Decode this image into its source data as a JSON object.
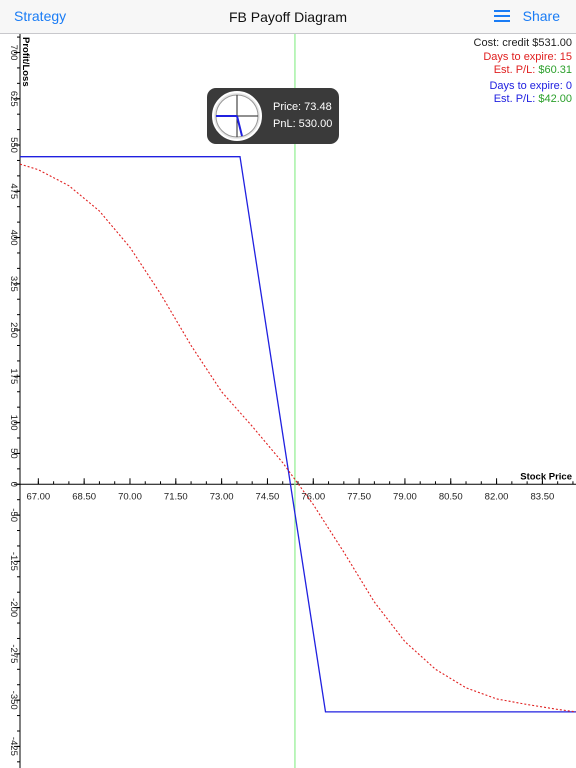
{
  "nav": {
    "left_label": "Strategy",
    "title": "FB Payoff Diagram",
    "list_icon": "list-icon",
    "share_label": "Share"
  },
  "info": {
    "cost": "Cost: credit $531.00",
    "expire15_label": "Days to expire: 15",
    "est15_label": "Est. P/L: ",
    "est15_value": "$60.31",
    "expire0_label": "Days to expire: 0",
    "est0_label": "Est. P/L: ",
    "est0_value": "$42.00"
  },
  "tooltip": {
    "price": "Price: 73.48",
    "pnl": "PnL: 530.00",
    "icon": "crosshair-icon"
  },
  "colors": {
    "accent": "#1a7cf5",
    "red": "#e02020",
    "blue": "#2020e0",
    "green": "#2ca02c",
    "cursor": "#90ee90"
  },
  "chart_data": {
    "type": "line",
    "xlabel": "Stock Price",
    "ylabel": "Profit/Loss",
    "xlim": [
      66.4,
      84.6
    ],
    "ylim": [
      -460,
      730
    ],
    "x_ticks": [
      "67.00",
      "68.50",
      "70.00",
      "71.50",
      "73.00",
      "74.50",
      "76.00",
      "77.50",
      "79.00",
      "80.50",
      "82.00",
      "83.50"
    ],
    "y_ticks": [
      "700",
      "625",
      "550",
      "475",
      "400",
      "325",
      "250",
      "175",
      "100",
      "50",
      "0",
      "-50",
      "-125",
      "-200",
      "-275",
      "-350",
      "-425"
    ],
    "cursor_x": 75.4,
    "series": [
      {
        "name": "Days to expire: 0",
        "x": [
          66.4,
          73.6,
          76.4,
          84.6
        ],
        "y": [
          531,
          531,
          -369,
          -369
        ]
      },
      {
        "name": "Days to expire: 15",
        "x": [
          66.4,
          67.0,
          68.0,
          69.0,
          70.0,
          71.0,
          72.0,
          73.0,
          74.0,
          75.0,
          76.0,
          77.0,
          78.0,
          79.0,
          80.0,
          81.0,
          82.0,
          83.0,
          84.0,
          84.6
        ],
        "y": [
          519,
          510,
          484,
          443,
          384,
          309,
          225,
          150,
          94,
          35,
          -33,
          -110,
          -191,
          -255,
          -300,
          -330,
          -348,
          -357,
          -365,
          -369
        ]
      }
    ]
  }
}
